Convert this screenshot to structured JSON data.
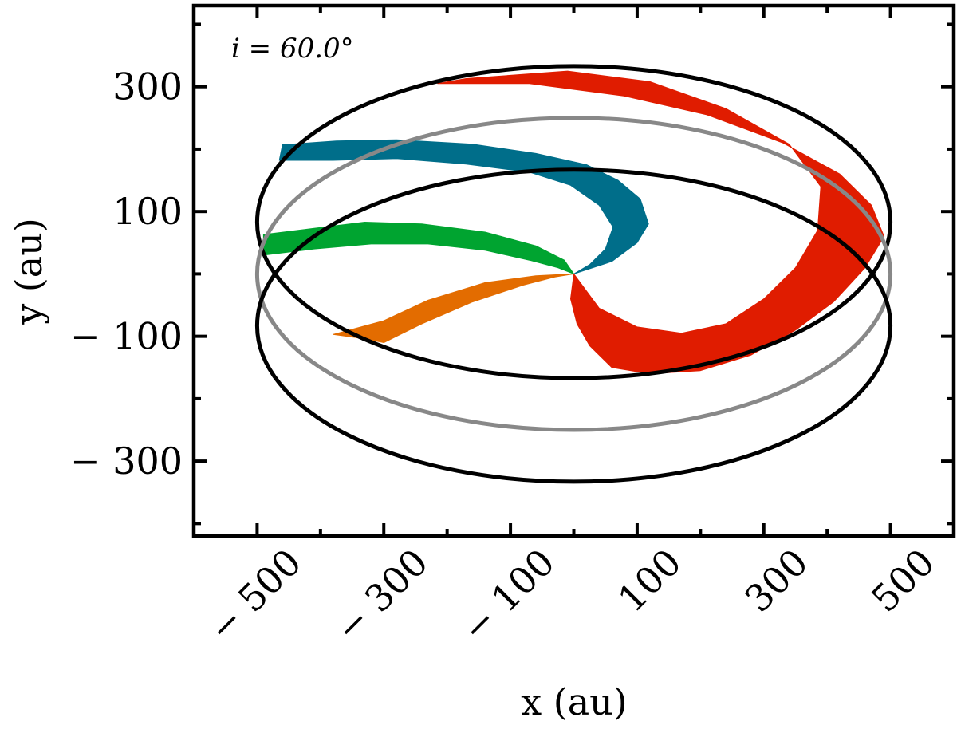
{
  "chart_data": {
    "type": "line",
    "annotation": "i = 60.0°",
    "xlabel": "x (au)",
    "ylabel": "y (au)",
    "xlim": [
      -600,
      600
    ],
    "ylim": [
      -420,
      430
    ],
    "xticks": [
      -500,
      -300,
      -100,
      100,
      300,
      500
    ],
    "xtick_labels": [
      "− 500",
      "− 300",
      "− 100",
      "100",
      "300",
      "500"
    ],
    "yticks": [
      -300,
      -100,
      100,
      300
    ],
    "ytick_labels": [
      "− 300",
      "− 100",
      "100",
      "300"
    ],
    "grid": false,
    "legend": "none",
    "inclination_deg": 60.0,
    "rings": [
      {
        "color": "#000000",
        "cx": 0,
        "cy": 83,
        "rx": 500,
        "ry": 250
      },
      {
        "color": "#888888",
        "cx": 0,
        "cy": 0,
        "rx": 500,
        "ry": 250
      },
      {
        "color": "#000000",
        "cx": 0,
        "cy": -83,
        "rx": 500,
        "ry": 250
      }
    ],
    "arms": [
      {
        "color": "#e01c00",
        "outer": [
          [
            0,
            0
          ],
          [
            -5,
            -40
          ],
          [
            5,
            -80
          ],
          [
            25,
            -115
          ],
          [
            60,
            -150
          ],
          [
            120,
            -160
          ],
          [
            200,
            -155
          ],
          [
            280,
            -130
          ],
          [
            350,
            -90
          ],
          [
            410,
            -45
          ],
          [
            460,
            10
          ],
          [
            490,
            60
          ],
          [
            470,
            110
          ],
          [
            420,
            160
          ],
          [
            330,
            210
          ],
          [
            210,
            255
          ],
          [
            80,
            285
          ],
          [
            -70,
            305
          ],
          [
            -215,
            305
          ]
        ],
        "inner": [
          [
            -215,
            305
          ],
          [
            -170,
            313
          ],
          [
            -10,
            325
          ],
          [
            120,
            308
          ],
          [
            240,
            265
          ],
          [
            340,
            208
          ],
          [
            390,
            140
          ],
          [
            385,
            70
          ],
          [
            350,
            10
          ],
          [
            300,
            -40
          ],
          [
            240,
            -80
          ],
          [
            170,
            -95
          ],
          [
            100,
            -85
          ],
          [
            40,
            -55
          ],
          [
            0,
            0
          ]
        ]
      },
      {
        "color": "#006e8a",
        "outer": [
          [
            0,
            0
          ],
          [
            60,
            20
          ],
          [
            100,
            50
          ],
          [
            118,
            80
          ],
          [
            105,
            120
          ],
          [
            70,
            150
          ],
          [
            20,
            175
          ],
          [
            -60,
            193
          ],
          [
            -160,
            208
          ],
          [
            -280,
            215
          ],
          [
            -375,
            213
          ],
          [
            -460,
            207
          ],
          [
            -465,
            182
          ]
        ],
        "inner": [
          [
            -465,
            182
          ],
          [
            -380,
            182
          ],
          [
            -280,
            185
          ],
          [
            -170,
            176
          ],
          [
            -70,
            163
          ],
          [
            -5,
            142
          ],
          [
            40,
            110
          ],
          [
            62,
            75
          ],
          [
            50,
            40
          ],
          [
            25,
            15
          ],
          [
            0,
            0
          ]
        ]
      },
      {
        "color": "#00a430",
        "outer": [
          [
            0,
            0
          ],
          [
            -15,
            22
          ],
          [
            -60,
            45
          ],
          [
            -140,
            67
          ],
          [
            -240,
            80
          ],
          [
            -330,
            83
          ],
          [
            -410,
            73
          ],
          [
            -490,
            63
          ],
          [
            -490,
            30
          ]
        ],
        "inner": [
          [
            -490,
            30
          ],
          [
            -410,
            40
          ],
          [
            -320,
            48
          ],
          [
            -230,
            48
          ],
          [
            -140,
            38
          ],
          [
            -70,
            22
          ],
          [
            -25,
            10
          ],
          [
            0,
            0
          ]
        ]
      },
      {
        "color": "#e36c00",
        "outer": [
          [
            0,
            0
          ],
          [
            -60,
            -3
          ],
          [
            -140,
            -14
          ],
          [
            -230,
            -42
          ],
          [
            -300,
            -75
          ],
          [
            -380,
            -97
          ]
        ],
        "inner": [
          [
            -380,
            -97
          ],
          [
            -330,
            -104
          ],
          [
            -300,
            -110
          ],
          [
            -240,
            -80
          ],
          [
            -160,
            -45
          ],
          [
            -80,
            -18
          ],
          [
            -30,
            -5
          ],
          [
            0,
            0
          ]
        ]
      }
    ]
  }
}
